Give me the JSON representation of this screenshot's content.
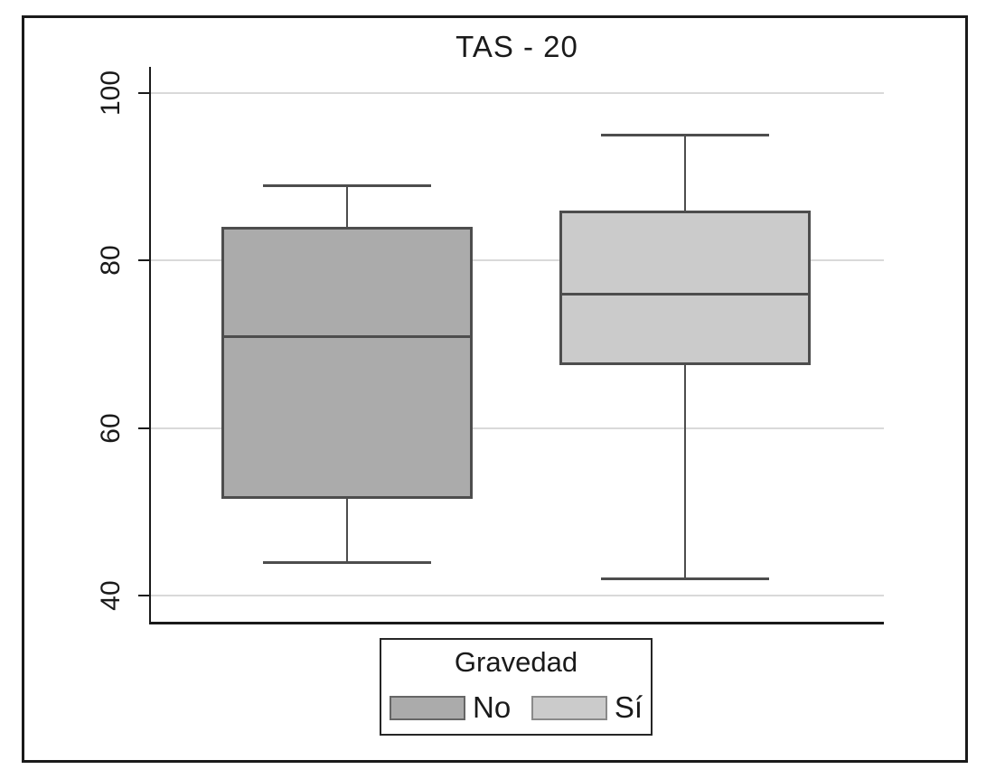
{
  "figure": {
    "background": "#ffffff",
    "border_color": "#1a1a1a"
  },
  "chart_data": {
    "type": "boxplot",
    "title": "TAS - 20",
    "xlabel": "",
    "ylabel": "",
    "y_ticks": [
      40,
      60,
      80,
      100
    ],
    "ylim": [
      36.5,
      103
    ],
    "grid": true,
    "gridline_color": "#d9d9d9",
    "axis_color": "#1a1a1a",
    "box_edge_color": "#4d4d4d",
    "legend": {
      "title": "Gravedad",
      "position": "bottom-center"
    },
    "groups": [
      {
        "label": "No",
        "fill": "#ababab",
        "swatch_edge": "#666666",
        "whisker_low": 44,
        "q1": 51.5,
        "median": 71,
        "q3": 84,
        "whisker_high": 89
      },
      {
        "label": "Sí",
        "fill": "#cbcbcb",
        "swatch_edge": "#8a8a8a",
        "whisker_low": 42,
        "q1": 67.5,
        "median": 76,
        "q3": 86,
        "whisker_high": 95
      }
    ]
  }
}
